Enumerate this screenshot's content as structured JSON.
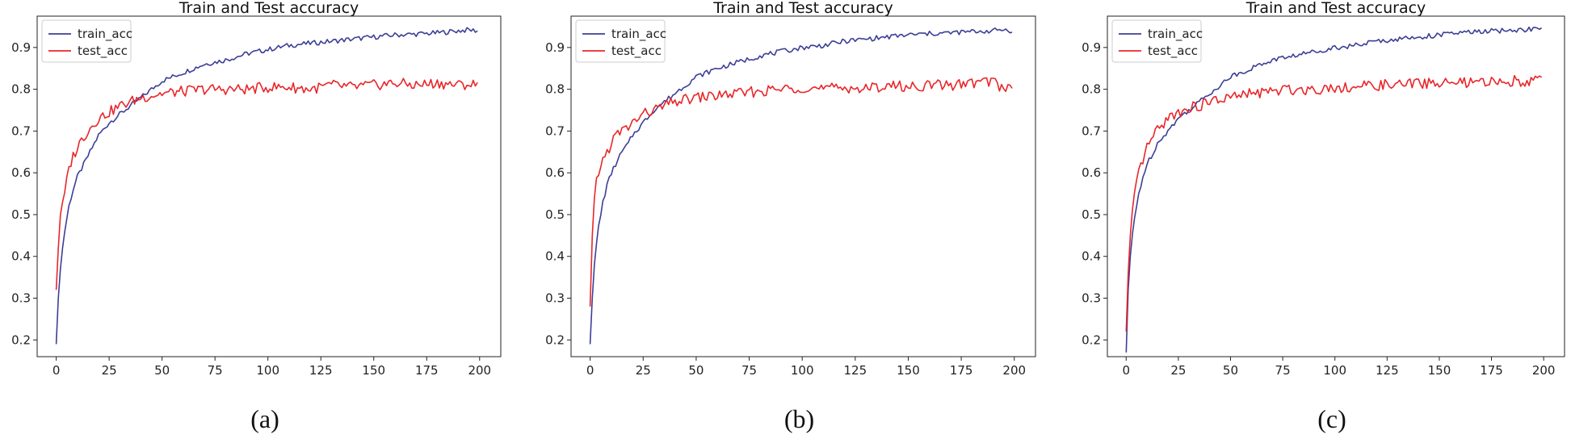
{
  "chart_data": [
    {
      "type": "line",
      "title": "Train and Test accuracy",
      "caption": "(a)",
      "xlim": [
        -9,
        210
      ],
      "ylim": [
        0.16,
        0.975
      ],
      "x_ticks": [
        0,
        25,
        50,
        75,
        100,
        125,
        150,
        175,
        200
      ],
      "y_ticks": [
        0.2,
        0.3,
        0.4,
        0.5,
        0.6,
        0.7,
        0.8,
        0.9
      ],
      "legend_position": "upper-left",
      "series": [
        {
          "name": "train_acc",
          "color": "#3b3f96",
          "x": [
            0,
            1,
            2,
            3,
            4,
            5,
            6,
            8,
            10,
            12,
            15,
            18,
            20,
            25,
            30,
            35,
            40,
            45,
            50,
            60,
            70,
            80,
            90,
            100,
            110,
            120,
            130,
            140,
            150,
            160,
            170,
            180,
            190,
            195,
            199
          ],
          "y": [
            0.19,
            0.3,
            0.37,
            0.42,
            0.46,
            0.49,
            0.52,
            0.56,
            0.59,
            0.61,
            0.64,
            0.67,
            0.69,
            0.72,
            0.74,
            0.76,
            0.78,
            0.8,
            0.82,
            0.84,
            0.86,
            0.87,
            0.885,
            0.895,
            0.905,
            0.91,
            0.915,
            0.92,
            0.925,
            0.93,
            0.932,
            0.935,
            0.94,
            0.942,
            0.94
          ]
        },
        {
          "name": "test_acc",
          "color": "#e8262a",
          "x": [
            0,
            1,
            2,
            3,
            4,
            5,
            6,
            8,
            10,
            12,
            15,
            18,
            20,
            25,
            30,
            35,
            40,
            45,
            50,
            60,
            70,
            80,
            90,
            100,
            110,
            120,
            130,
            140,
            150,
            160,
            170,
            180,
            190,
            195,
            199
          ],
          "y": [
            0.32,
            0.42,
            0.5,
            0.52,
            0.55,
            0.58,
            0.61,
            0.64,
            0.66,
            0.68,
            0.7,
            0.72,
            0.73,
            0.745,
            0.76,
            0.77,
            0.78,
            0.785,
            0.79,
            0.795,
            0.8,
            0.8,
            0.8,
            0.805,
            0.805,
            0.8,
            0.81,
            0.805,
            0.81,
            0.815,
            0.81,
            0.815,
            0.81,
            0.812,
            0.81
          ]
        }
      ]
    },
    {
      "type": "line",
      "title": "Train and Test accuracy",
      "caption": "(b)",
      "xlim": [
        -9,
        210
      ],
      "ylim": [
        0.16,
        0.975
      ],
      "x_ticks": [
        0,
        25,
        50,
        75,
        100,
        125,
        150,
        175,
        200
      ],
      "y_ticks": [
        0.2,
        0.3,
        0.4,
        0.5,
        0.6,
        0.7,
        0.8,
        0.9
      ],
      "legend_position": "upper-left",
      "series": [
        {
          "name": "train_acc",
          "color": "#3b3f96",
          "x": [
            0,
            1,
            2,
            3,
            4,
            5,
            6,
            8,
            10,
            12,
            15,
            18,
            20,
            25,
            30,
            35,
            40,
            45,
            50,
            60,
            70,
            80,
            90,
            100,
            110,
            120,
            130,
            140,
            150,
            160,
            170,
            180,
            190,
            195,
            199
          ],
          "y": [
            0.19,
            0.3,
            0.38,
            0.43,
            0.47,
            0.5,
            0.53,
            0.57,
            0.6,
            0.62,
            0.65,
            0.67,
            0.69,
            0.72,
            0.75,
            0.77,
            0.79,
            0.81,
            0.83,
            0.85,
            0.865,
            0.88,
            0.89,
            0.9,
            0.905,
            0.915,
            0.92,
            0.925,
            0.93,
            0.933,
            0.935,
            0.938,
            0.94,
            0.943,
            0.94
          ]
        },
        {
          "name": "test_acc",
          "color": "#e8262a",
          "x": [
            0,
            1,
            2,
            3,
            4,
            5,
            6,
            8,
            10,
            12,
            15,
            18,
            20,
            25,
            30,
            35,
            40,
            45,
            50,
            60,
            70,
            80,
            90,
            100,
            110,
            120,
            130,
            140,
            150,
            160,
            170,
            180,
            190,
            195,
            199
          ],
          "y": [
            0.28,
            0.45,
            0.54,
            0.58,
            0.6,
            0.62,
            0.63,
            0.65,
            0.67,
            0.69,
            0.7,
            0.71,
            0.72,
            0.74,
            0.75,
            0.76,
            0.77,
            0.775,
            0.78,
            0.785,
            0.79,
            0.795,
            0.8,
            0.805,
            0.8,
            0.805,
            0.8,
            0.81,
            0.805,
            0.81,
            0.81,
            0.815,
            0.82,
            0.8,
            0.81
          ]
        }
      ]
    },
    {
      "type": "line",
      "title": "Train and Test accuracy",
      "caption": "(c)",
      "xlim": [
        -9,
        210
      ],
      "ylim": [
        0.16,
        0.975
      ],
      "x_ticks": [
        0,
        25,
        50,
        75,
        100,
        125,
        150,
        175,
        200
      ],
      "y_ticks": [
        0.2,
        0.3,
        0.4,
        0.5,
        0.6,
        0.7,
        0.8,
        0.9
      ],
      "legend_position": "upper-left",
      "series": [
        {
          "name": "train_acc",
          "color": "#3b3f96",
          "x": [
            0,
            1,
            2,
            3,
            4,
            5,
            6,
            8,
            10,
            12,
            15,
            18,
            20,
            25,
            30,
            35,
            40,
            45,
            50,
            60,
            70,
            80,
            90,
            100,
            110,
            120,
            130,
            140,
            150,
            160,
            170,
            180,
            190,
            195,
            199
          ],
          "y": [
            0.17,
            0.32,
            0.4,
            0.45,
            0.49,
            0.52,
            0.55,
            0.59,
            0.62,
            0.64,
            0.67,
            0.69,
            0.7,
            0.73,
            0.75,
            0.77,
            0.79,
            0.81,
            0.83,
            0.85,
            0.87,
            0.88,
            0.89,
            0.9,
            0.905,
            0.915,
            0.92,
            0.925,
            0.93,
            0.935,
            0.938,
            0.94,
            0.942,
            0.945,
            0.943
          ]
        },
        {
          "name": "test_acc",
          "color": "#e8262a",
          "x": [
            0,
            1,
            2,
            3,
            4,
            5,
            6,
            8,
            10,
            12,
            15,
            18,
            20,
            25,
            30,
            35,
            40,
            45,
            50,
            60,
            70,
            80,
            90,
            100,
            110,
            120,
            130,
            140,
            150,
            160,
            170,
            180,
            190,
            195,
            199
          ],
          "y": [
            0.22,
            0.36,
            0.45,
            0.5,
            0.54,
            0.57,
            0.6,
            0.63,
            0.66,
            0.68,
            0.7,
            0.72,
            0.73,
            0.745,
            0.755,
            0.76,
            0.77,
            0.775,
            0.78,
            0.79,
            0.795,
            0.8,
            0.8,
            0.805,
            0.805,
            0.81,
            0.81,
            0.815,
            0.815,
            0.815,
            0.815,
            0.82,
            0.82,
            0.822,
            0.82
          ]
        }
      ]
    }
  ]
}
